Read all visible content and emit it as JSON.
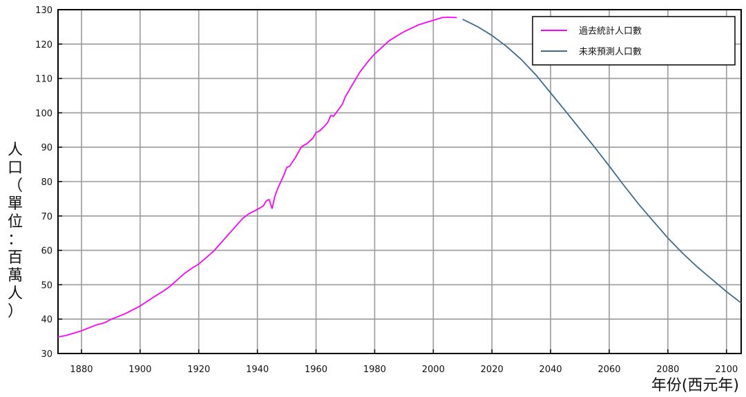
{
  "chart_data": {
    "type": "line",
    "title": "",
    "xlabel": "年份(西元年)",
    "ylabel": "人口（單位：百萬人）",
    "xlim": [
      1872,
      2105
    ],
    "ylim": [
      30,
      130
    ],
    "xticks": [
      1880,
      1900,
      1920,
      1940,
      1960,
      1980,
      2000,
      2020,
      2040,
      2060,
      2080,
      2100
    ],
    "yticks": [
      30,
      40,
      50,
      60,
      70,
      80,
      90,
      100,
      110,
      120,
      130
    ],
    "grid": true,
    "legend_position": "top-right",
    "series": [
      {
        "name": "過去統計人口數",
        "color": "#ff00ff",
        "points": [
          [
            1872,
            34.8
          ],
          [
            1875,
            35.3
          ],
          [
            1880,
            36.6
          ],
          [
            1885,
            38.3
          ],
          [
            1888,
            39.0
          ],
          [
            1890,
            39.9
          ],
          [
            1895,
            41.6
          ],
          [
            1900,
            43.8
          ],
          [
            1905,
            46.6
          ],
          [
            1908,
            48.2
          ],
          [
            1910,
            49.4
          ],
          [
            1915,
            53.2
          ],
          [
            1918,
            55.0
          ],
          [
            1920,
            56.0
          ],
          [
            1925,
            59.7
          ],
          [
            1930,
            64.5
          ],
          [
            1935,
            69.3
          ],
          [
            1937,
            70.6
          ],
          [
            1940,
            71.9
          ],
          [
            1942,
            72.9
          ],
          [
            1943,
            74.4
          ],
          [
            1944,
            74.8
          ],
          [
            1945,
            72.2
          ],
          [
            1946,
            75.8
          ],
          [
            1947,
            78.1
          ],
          [
            1948,
            80.0
          ],
          [
            1949,
            81.8
          ],
          [
            1950,
            84.1
          ],
          [
            1951,
            84.5
          ],
          [
            1953,
            87.0
          ],
          [
            1955,
            90.1
          ],
          [
            1957,
            91.1
          ],
          [
            1959,
            92.7
          ],
          [
            1960,
            94.3
          ],
          [
            1961,
            94.6
          ],
          [
            1963,
            96.2
          ],
          [
            1964,
            97.2
          ],
          [
            1965,
            99.2
          ],
          [
            1966,
            99.0
          ],
          [
            1967,
            100.2
          ],
          [
            1968,
            101.3
          ],
          [
            1969,
            102.5
          ],
          [
            1970,
            104.7
          ],
          [
            1972,
            107.6
          ],
          [
            1975,
            111.9
          ],
          [
            1978,
            115.2
          ],
          [
            1980,
            117.1
          ],
          [
            1985,
            121.0
          ],
          [
            1990,
            123.6
          ],
          [
            1995,
            125.6
          ],
          [
            2000,
            126.9
          ],
          [
            2003,
            127.7
          ],
          [
            2005,
            127.8
          ],
          [
            2008,
            127.7
          ]
        ]
      },
      {
        "name": "未來預測人口數",
        "color": "#3d6a8a",
        "points": [
          [
            2010,
            127.2
          ],
          [
            2015,
            125.1
          ],
          [
            2020,
            122.5
          ],
          [
            2025,
            119.3
          ],
          [
            2030,
            115.5
          ],
          [
            2035,
            111.0
          ],
          [
            2040,
            105.8
          ],
          [
            2045,
            100.6
          ],
          [
            2050,
            95.3
          ],
          [
            2055,
            90.0
          ],
          [
            2060,
            84.5
          ],
          [
            2065,
            78.9
          ],
          [
            2070,
            73.5
          ],
          [
            2075,
            68.5
          ],
          [
            2080,
            63.6
          ],
          [
            2085,
            59.2
          ],
          [
            2090,
            55.2
          ],
          [
            2095,
            51.6
          ],
          [
            2100,
            48.0
          ],
          [
            2105,
            44.7
          ]
        ]
      }
    ]
  },
  "ylabel_chars": [
    "人",
    "口",
    "（",
    "單",
    "位",
    "：",
    "百",
    "萬",
    "人",
    "）"
  ]
}
